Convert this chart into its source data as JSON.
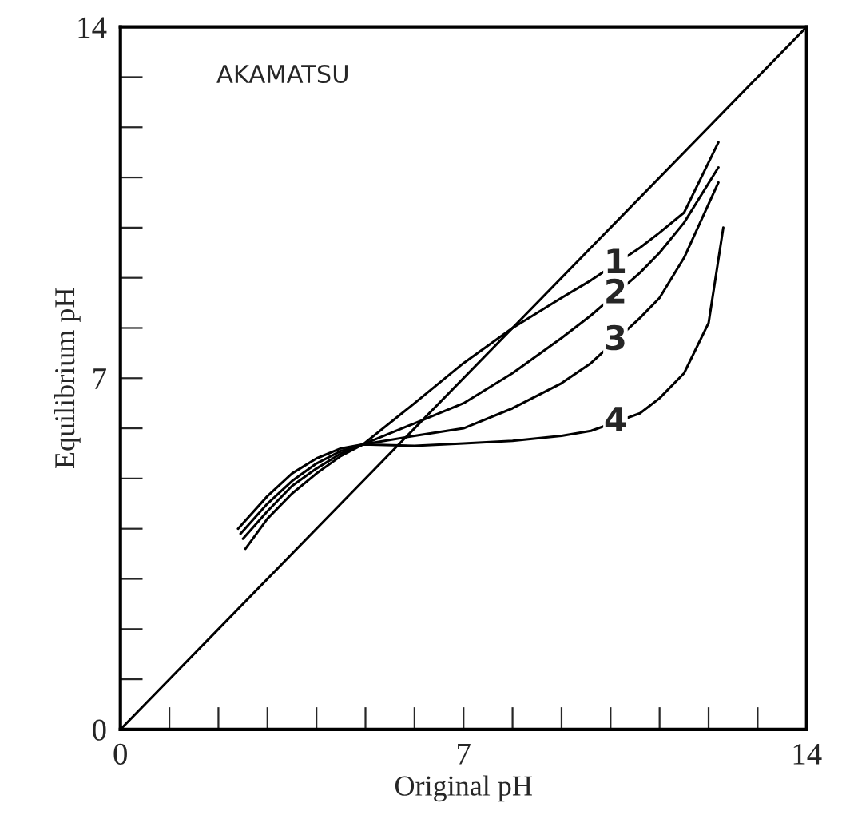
{
  "chart_data": {
    "type": "line",
    "xlabel": "Original pH",
    "ylabel": "Equilibrium pH",
    "xlim": [
      0,
      14
    ],
    "ylim": [
      0,
      14
    ],
    "xticks": [
      0,
      {
        "value": 1,
        "label": null
      },
      {
        "value": 2,
        "label": null
      },
      {
        "value": 3,
        "label": null
      },
      {
        "value": 4,
        "label": null
      },
      {
        "value": 5,
        "label": null
      },
      {
        "value": 6,
        "label": null
      },
      7,
      {
        "value": 8,
        "label": null
      },
      {
        "value": 9,
        "label": null
      },
      {
        "value": 10,
        "label": null
      },
      {
        "value": 11,
        "label": null
      },
      {
        "value": 12,
        "label": null
      },
      {
        "value": 13,
        "label": null
      },
      14
    ],
    "yticks": [
      0,
      {
        "value": 1,
        "label": null
      },
      {
        "value": 2,
        "label": null
      },
      {
        "value": 3,
        "label": null
      },
      {
        "value": 4,
        "label": null
      },
      {
        "value": 5,
        "label": null
      },
      {
        "value": 6,
        "label": null
      },
      7,
      {
        "value": 8,
        "label": null
      },
      {
        "value": 9,
        "label": null
      },
      {
        "value": 10,
        "label": null
      },
      {
        "value": 11,
        "label": null
      },
      {
        "value": 12,
        "label": null
      },
      {
        "value": 13,
        "label": null
      },
      14
    ],
    "grid": false,
    "legend": false,
    "marker": "none",
    "line_style": "solid",
    "series": [
      {
        "color": "#000000",
        "x": [
          0,
          14
        ],
        "values": [
          0,
          14
        ]
      },
      {
        "name": "1",
        "color": "#000000",
        "x": [
          2.55,
          3.0,
          3.5,
          4.0,
          4.5,
          4.95,
          6.0,
          7.0,
          8.0,
          9.0,
          9.6,
          10.6,
          11.0,
          11.5,
          12.2
        ],
        "values": [
          3.6,
          4.2,
          4.7,
          5.1,
          5.45,
          5.68,
          6.5,
          7.3,
          8.0,
          8.6,
          8.95,
          9.6,
          9.9,
          10.3,
          11.7
        ]
      },
      {
        "name": "2",
        "color": "#000000",
        "x": [
          2.5,
          3.0,
          3.5,
          4.0,
          4.5,
          4.95,
          6.0,
          7.0,
          8.0,
          9.0,
          9.6,
          10.6,
          11.0,
          11.5,
          12.2
        ],
        "values": [
          3.8,
          4.35,
          4.85,
          5.2,
          5.5,
          5.68,
          6.1,
          6.5,
          7.1,
          7.8,
          8.25,
          9.1,
          9.5,
          10.1,
          11.2
        ]
      },
      {
        "name": "3",
        "color": "#000000",
        "x": [
          2.45,
          3.0,
          3.5,
          4.0,
          4.5,
          4.95,
          6.0,
          7.0,
          8.0,
          9.0,
          9.6,
          10.6,
          11.0,
          11.5,
          12.2
        ],
        "values": [
          3.9,
          4.5,
          4.95,
          5.3,
          5.55,
          5.68,
          5.85,
          6.0,
          6.4,
          6.9,
          7.3,
          8.2,
          8.6,
          9.4,
          10.9
        ]
      },
      {
        "name": "4",
        "color": "#000000",
        "x": [
          2.4,
          3.0,
          3.5,
          4.0,
          4.5,
          4.95,
          6.0,
          7.0,
          8.0,
          9.0,
          9.6,
          10.6,
          11.0,
          11.5,
          12.0,
          12.3
        ],
        "values": [
          4.0,
          4.65,
          5.1,
          5.4,
          5.6,
          5.68,
          5.65,
          5.7,
          5.75,
          5.85,
          5.95,
          6.3,
          6.6,
          7.1,
          8.1,
          10.0
        ]
      }
    ],
    "annotations": [
      "AKAMATSU"
    ]
  }
}
